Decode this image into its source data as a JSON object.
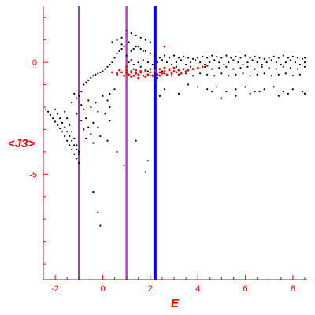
{
  "chart_data": {
    "type": "scatter",
    "title": "",
    "xlabel": "E",
    "ylabel": "<J3>",
    "xlim": [
      -2.5,
      8.6
    ],
    "ylim": [
      -9.7,
      2.5
    ],
    "axis_color": "#ff0000",
    "x_ticks": [
      -2,
      0,
      2,
      4,
      6,
      8
    ],
    "y_ticks": [
      0,
      -5
    ],
    "vertical_lines": [
      {
        "x": -1.0,
        "color": "#9933cc"
      },
      {
        "x": 1.0,
        "color": "#cc33cc"
      },
      {
        "x": 2.2,
        "color": "#0000ff"
      }
    ],
    "series": [
      {
        "color": "#000000",
        "marker_size": 1.6,
        "x": [
          -2.4,
          -2.3,
          -2.2,
          -2.1,
          -2.0,
          -1.9,
          -1.8,
          -1.7,
          -1.6,
          -1.5,
          -1.4,
          -1.3,
          -1.2,
          -1.1,
          -1.0,
          -2.0,
          -1.9,
          -1.8,
          -1.7,
          -1.6,
          -1.5,
          -1.4,
          -1.3,
          -1.2,
          -1.1,
          -1.0,
          -1.6,
          -1.5,
          -1.4,
          -1.3,
          -1.2,
          -1.1,
          -1.0,
          -1.2,
          -1.1,
          -1.0,
          -0.9,
          -0.8,
          -0.7,
          -0.6,
          -0.5,
          -0.4,
          -0.3,
          -0.2,
          -0.1,
          0.0,
          0.1,
          0.2,
          0.3,
          0.4,
          0.5,
          0.6,
          0.7,
          0.8,
          0.9,
          -0.9,
          -0.8,
          -0.6,
          -0.5,
          -0.3,
          -0.2,
          0.0,
          0.2,
          0.3,
          0.5,
          -0.9,
          -0.7,
          -0.4,
          0.1,
          0.3,
          -0.8,
          -0.5,
          -0.2,
          0.3,
          -0.7,
          -0.4,
          -0.1,
          -1.3,
          -1.1,
          -0.6,
          0.2,
          0.6,
          0.9,
          1.8,
          2.4,
          1.0,
          1.2,
          1.4,
          1.6,
          1.8,
          2.0,
          2.2,
          2.4,
          2.6,
          2.8,
          3.0,
          3.2,
          3.4,
          3.6,
          3.8,
          4.0,
          4.2,
          4.4,
          4.6,
          4.8,
          5.0,
          5.2,
          5.4,
          5.6,
          5.8,
          6.0,
          6.2,
          6.4,
          6.6,
          6.8,
          7.0,
          7.2,
          7.4,
          7.6,
          7.8,
          8.0,
          8.2,
          8.4,
          8.5,
          1.1,
          1.3,
          1.5,
          1.7,
          1.9,
          2.1,
          2.3,
          2.5,
          2.7,
          2.9,
          3.1,
          3.3,
          3.5,
          3.7,
          3.9,
          4.1,
          4.3,
          4.5,
          4.7,
          4.9,
          5.1,
          5.3,
          5.5,
          5.7,
          5.9,
          6.1,
          6.3,
          6.5,
          6.7,
          6.9,
          7.1,
          7.3,
          7.5,
          7.7,
          7.9,
          8.1,
          8.3,
          8.5,
          1.0,
          1.3,
          1.6,
          1.9,
          2.2,
          2.5,
          2.8,
          3.1,
          3.4,
          3.7,
          4.0,
          4.3,
          4.6,
          4.9,
          5.2,
          5.5,
          5.8,
          6.1,
          6.4,
          6.7,
          7.0,
          7.3,
          7.6,
          7.9,
          8.2,
          8.5,
          2.0,
          2.3,
          2.6,
          2.9,
          3.2,
          3.5,
          3.8,
          4.1,
          4.4,
          4.7,
          5.0,
          5.3,
          5.6,
          5.9,
          6.2,
          6.5,
          6.8,
          7.1,
          7.4,
          7.7,
          8.0,
          8.3,
          3.6,
          4.0,
          4.4,
          4.8,
          5.2,
          5.6,
          6.0,
          6.4,
          6.8,
          7.2,
          7.6,
          8.0,
          8.4,
          0.4,
          0.6,
          0.8,
          1.0,
          1.2,
          1.4,
          1.6,
          1.8,
          2.0,
          0.8,
          1.1,
          1.3,
          1.5,
          1.7,
          2.4,
          2.6,
          3.2,
          4.6,
          5.0,
          5.6,
          6.2,
          6.6,
          7.4,
          7.8,
          8.5,
          1.4,
          1.9,
          -0.4,
          -0.2,
          -0.1
        ],
        "y": [
          -2.1,
          -2.2,
          -2.35,
          -2.5,
          -2.65,
          -2.8,
          -2.95,
          -3.1,
          -3.3,
          -3.5,
          -3.7,
          -3.9,
          -4.1,
          -4.3,
          -4.5,
          -2.1,
          -2.3,
          -2.5,
          -2.7,
          -2.9,
          -3.1,
          -3.3,
          -3.5,
          -3.7,
          -3.9,
          -4.1,
          -2.2,
          -2.5,
          -2.8,
          -3.1,
          -3.4,
          -3.7,
          -4.0,
          -1.4,
          -1.6,
          -1.5,
          -1.3,
          -1.0,
          -0.9,
          -0.8,
          -0.7,
          -0.6,
          -0.55,
          -0.5,
          -0.45,
          -0.4,
          -0.3,
          -0.2,
          -0.1,
          0.0,
          0.2,
          0.4,
          0.5,
          0.6,
          0.7,
          -1.9,
          -2.1,
          -1.7,
          -2.0,
          -1.8,
          -2.2,
          -1.5,
          -1.7,
          -1.4,
          -1.2,
          -2.6,
          -2.5,
          -2.7,
          -2.3,
          -2.0,
          -3.0,
          -3.2,
          -2.9,
          -2.6,
          -3.4,
          -3.6,
          -3.3,
          -1.8,
          -2.3,
          -2.9,
          -3.5,
          -4.0,
          -4.6,
          -4.9,
          -1.5,
          0.3,
          0.5,
          0.7,
          0.6,
          0.5,
          0.4,
          0.3,
          0.2,
          0.3,
          0.2,
          0.3,
          0.2,
          0.25,
          0.2,
          0.15,
          0.2,
          0.25,
          0.2,
          0.3,
          0.25,
          0.2,
          0.3,
          0.2,
          0.25,
          0.2,
          0.3,
          0.2,
          0.25,
          0.2,
          0.15,
          0.2,
          0.25,
          0.2,
          0.3,
          0.2,
          0.25,
          0.2,
          0.15,
          0.2,
          0.0,
          -0.1,
          0.0,
          0.1,
          0.0,
          -0.1,
          0.0,
          0.1,
          0.0,
          -0.1,
          0.0,
          0.1,
          -0.1,
          0.0,
          0.1,
          0.0,
          -0.1,
          0.0,
          0.1,
          0.0,
          -0.1,
          0.0,
          0.1,
          0.0,
          -0.1,
          0.0,
          0.1,
          0.0,
          -0.1,
          0.0,
          0.1,
          0.0,
          -0.1,
          0.0,
          0.1,
          0.0,
          -0.1,
          0.0,
          -0.2,
          -0.3,
          -0.2,
          -0.4,
          -0.3,
          -0.4,
          -0.3,
          -0.2,
          -0.3,
          -0.2,
          -0.25,
          -0.2,
          -0.3,
          -0.25,
          -0.2,
          -0.3,
          -0.25,
          -0.2,
          -0.3,
          -0.2,
          -0.25,
          -0.3,
          -0.2,
          -0.25,
          -0.3,
          -0.2,
          -0.6,
          -0.7,
          -0.5,
          -0.6,
          -0.55,
          -0.5,
          -0.6,
          -0.5,
          -0.55,
          -0.6,
          -0.5,
          -0.6,
          -0.55,
          -0.5,
          -0.6,
          -0.55,
          -0.5,
          -0.6,
          -0.55,
          -0.5,
          -0.6,
          -0.55,
          -1.0,
          -1.1,
          -1.2,
          -1.1,
          -1.3,
          -1.2,
          -1.1,
          -1.3,
          -1.2,
          -1.1,
          -1.3,
          -1.2,
          -1.3,
          0.9,
          1.0,
          1.1,
          1.4,
          1.3,
          1.2,
          1.1,
          1.0,
          0.9,
          0.8,
          0.9,
          0.6,
          0.7,
          0.5,
          -1.5,
          -1.2,
          -1.4,
          -1.3,
          -1.6,
          -1.5,
          -1.4,
          -1.3,
          -1.5,
          -1.4,
          -1.4,
          -3.5,
          -4.4,
          -5.8,
          -6.7,
          -7.3
        ]
      },
      {
        "color": "#ff0000",
        "marker_size": 2.2,
        "x": [
          0.4,
          0.6,
          0.8,
          1.0,
          1.2,
          1.4,
          1.6,
          1.8,
          2.0,
          2.2,
          2.4,
          2.6,
          2.8,
          3.0,
          3.2,
          3.4,
          3.6,
          3.8,
          4.0,
          4.2,
          4.4,
          0.6,
          0.9,
          1.1,
          1.3,
          1.5,
          1.7,
          1.9,
          2.1,
          2.3,
          2.5,
          2.7,
          2.9,
          3.1,
          3.3,
          3.5,
          0.7,
          1.0,
          1.2,
          1.4,
          1.6,
          1.8,
          2.0,
          2.2,
          2.4,
          2.6,
          2.8,
          3.0,
          1.2,
          1.5,
          1.8,
          2.1,
          2.4,
          1.2,
          1.0,
          2.6
        ],
        "y": [
          -0.45,
          -0.5,
          -0.45,
          -0.5,
          -0.45,
          -0.5,
          -0.45,
          -0.4,
          -0.45,
          -0.4,
          -0.45,
          -0.4,
          -0.35,
          -0.4,
          -0.35,
          -0.3,
          -0.35,
          -0.3,
          -0.25,
          -0.2,
          -0.15,
          -0.55,
          -0.6,
          -0.55,
          -0.6,
          -0.55,
          -0.6,
          -0.55,
          -0.6,
          -0.55,
          -0.5,
          -0.55,
          -0.5,
          -0.45,
          -0.5,
          -0.4,
          -0.35,
          -0.35,
          -0.4,
          -0.35,
          -0.4,
          -0.35,
          -0.3,
          -0.35,
          -0.3,
          -0.25,
          -0.3,
          -0.25,
          -0.65,
          -0.7,
          -0.65,
          -0.6,
          -0.6,
          0.1,
          -0.2,
          0.7
        ]
      }
    ]
  }
}
